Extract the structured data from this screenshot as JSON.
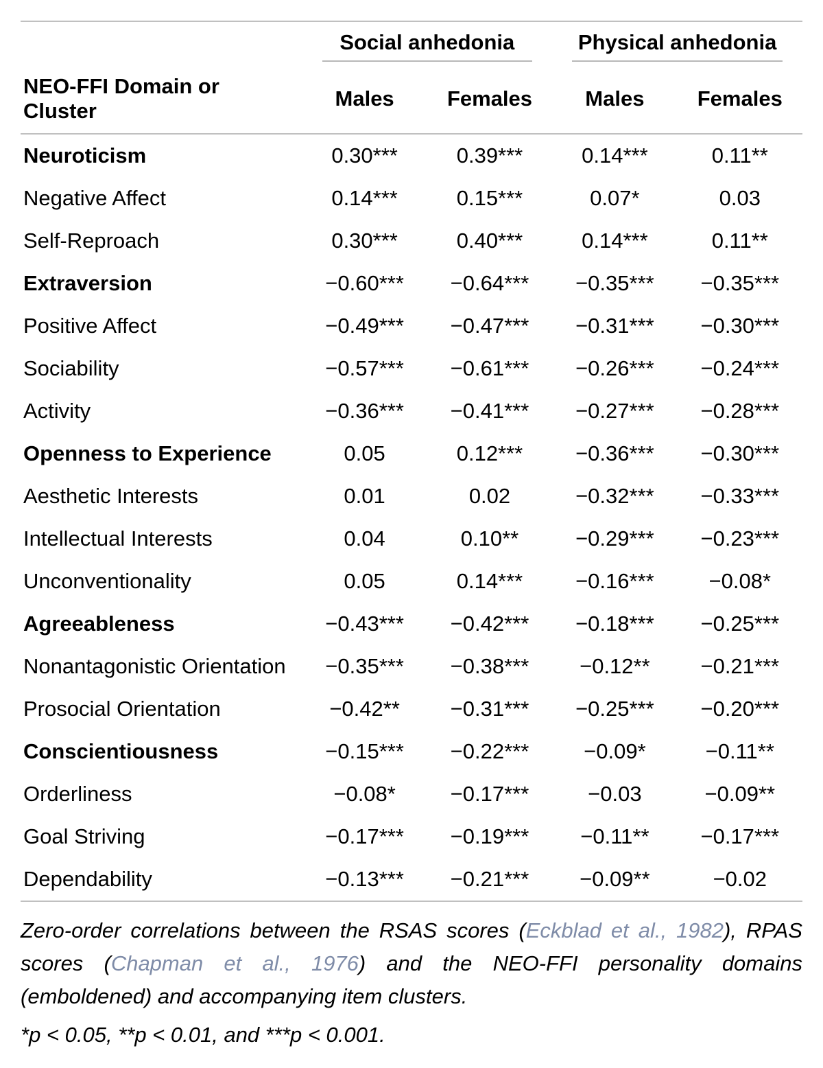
{
  "table": {
    "type": "table",
    "background_color": "#ffffff",
    "text_color": "#000000",
    "rule_color": "#c0c0c0",
    "font_family": "Helvetica Neue",
    "font_size_pt": 23,
    "row_header_label": "NEO-FFI Domain or Cluster",
    "groups": [
      {
        "label": "Social anhedonia"
      },
      {
        "label": "Physical anhedonia"
      }
    ],
    "sub_columns": [
      "Males",
      "Females",
      "Males",
      "Females"
    ],
    "column_widths_pct": [
      36,
      16,
      16,
      16,
      16
    ],
    "rows": [
      {
        "label": "Neuroticism",
        "bold": true,
        "values": [
          "0.30***",
          "0.39***",
          "0.14***",
          "0.11**"
        ]
      },
      {
        "label": "Negative Affect",
        "bold": false,
        "values": [
          "0.14***",
          "0.15***",
          "0.07*",
          "0.03"
        ]
      },
      {
        "label": "Self-Reproach",
        "bold": false,
        "values": [
          "0.30***",
          "0.40***",
          "0.14***",
          "0.11**"
        ]
      },
      {
        "label": "Extraversion",
        "bold": true,
        "values": [
          "−0.60***",
          "−0.64***",
          "−0.35***",
          "−0.35***"
        ]
      },
      {
        "label": "Positive Affect",
        "bold": false,
        "values": [
          "−0.49***",
          "−0.47***",
          "−0.31***",
          "−0.30***"
        ]
      },
      {
        "label": "Sociability",
        "bold": false,
        "values": [
          "−0.57***",
          "−0.61***",
          "−0.26***",
          "−0.24***"
        ]
      },
      {
        "label": "Activity",
        "bold": false,
        "values": [
          "−0.36***",
          "−0.41***",
          "−0.27***",
          "−0.28***"
        ]
      },
      {
        "label": "Openness to Experience",
        "bold": true,
        "values": [
          "0.05",
          "0.12***",
          "−0.36***",
          "−0.30***"
        ]
      },
      {
        "label": "Aesthetic Interests",
        "bold": false,
        "values": [
          "0.01",
          "0.02",
          "−0.32***",
          "−0.33***"
        ]
      },
      {
        "label": "Intellectual Interests",
        "bold": false,
        "values": [
          "0.04",
          "0.10**",
          "−0.29***",
          "−0.23***"
        ]
      },
      {
        "label": "Unconventionality",
        "bold": false,
        "values": [
          "0.05",
          "0.14***",
          "−0.16***",
          "−0.08*"
        ]
      },
      {
        "label": "Agreeableness",
        "bold": true,
        "values": [
          "−0.43***",
          "−0.42***",
          "−0.18***",
          "−0.25***"
        ]
      },
      {
        "label": "Nonantagonistic Orientation",
        "bold": false,
        "values": [
          "−0.35***",
          "−0.38***",
          "−0.12**",
          "−0.21***"
        ]
      },
      {
        "label": "Prosocial Orientation",
        "bold": false,
        "values": [
          "−0.42**",
          "−0.31***",
          "−0.25***",
          "−0.20***"
        ]
      },
      {
        "label": "Conscientiousness",
        "bold": true,
        "values": [
          "−0.15***",
          "−0.22***",
          "−0.09*",
          "−0.11**"
        ]
      },
      {
        "label": "Orderliness",
        "bold": false,
        "values": [
          "−0.08*",
          "−0.17***",
          "−0.03",
          "−0.09**"
        ]
      },
      {
        "label": "Goal Striving",
        "bold": false,
        "values": [
          "−0.17***",
          "−0.19***",
          "−0.11**",
          "−0.17***"
        ]
      },
      {
        "label": "Dependability",
        "bold": false,
        "values": [
          "−0.13***",
          "−0.21***",
          "−0.09**",
          "−0.02"
        ]
      }
    ]
  },
  "footnote": {
    "parts": [
      {
        "text": "Zero-order correlations between the RSAS scores (",
        "cite": false
      },
      {
        "text": "Eckblad et al., 1982",
        "cite": true
      },
      {
        "text": "), RPAS scores (",
        "cite": false
      },
      {
        "text": "Chapman et al., 1976",
        "cite": true
      },
      {
        "text": ") and the NEO-FFI personality domains (emboldened) and accompanying item clusters.",
        "cite": false
      }
    ],
    "citation_color": "#7f8ca8"
  },
  "significance_line": "*p < 0.05, **p < 0.01, and ***p < 0.001."
}
